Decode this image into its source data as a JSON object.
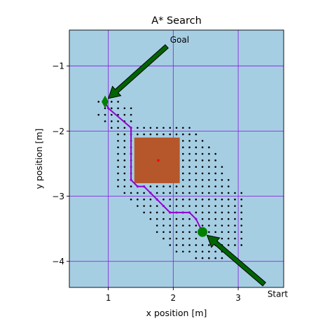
{
  "chart_data": {
    "type": "scatter",
    "title": "A* Search",
    "xlabel": "x position [m]",
    "ylabel": "y position [m]",
    "xlim": [
      0.4,
      3.7
    ],
    "ylim": [
      -4.4,
      -0.45
    ],
    "xticks": [
      1,
      2,
      3
    ],
    "xtick_labels": [
      "1",
      "2",
      "3"
    ],
    "yticks": [
      -1,
      -2,
      -3,
      -4
    ],
    "ytick_labels": [
      "−1",
      "−2",
      "−3",
      "−4"
    ],
    "grid": true,
    "background_color": "#a6cee3",
    "grid_color": "#8a2be2",
    "obstacle": {
      "x": [
        1.4,
        2.1
      ],
      "y": [
        -2.8,
        -2.1
      ],
      "center": [
        1.77,
        -2.45
      ],
      "color": "#b5572b",
      "center_color": "#ff0000"
    },
    "path": {
      "color": "#9400d3",
      "x": [
        0.95,
        1.0,
        1.35,
        1.35,
        1.35,
        1.45,
        1.55,
        1.65,
        1.75,
        1.85,
        1.95,
        2.05,
        2.15,
        2.25,
        2.35,
        2.45
      ],
      "y": [
        -1.55,
        -1.65,
        -1.95,
        -2.35,
        -2.75,
        -2.85,
        -2.85,
        -2.95,
        -3.05,
        -3.15,
        -3.25,
        -3.25,
        -3.25,
        -3.25,
        -3.35,
        -3.55
      ]
    },
    "explored_nodes": {
      "color": "#000000",
      "rows": [
        {
          "y": -1.55,
          "x": [
            0.85,
            1.05,
            1.15
          ]
        },
        {
          "y": -1.65,
          "x": [
            0.95,
            1.05,
            1.15,
            1.25,
            1.35
          ]
        },
        {
          "y": -1.75,
          "x": [
            0.85,
            0.95,
            1.05,
            1.15,
            1.25,
            1.35
          ]
        },
        {
          "y": -1.85,
          "x": [
            0.95,
            1.05,
            1.15,
            1.25,
            1.35
          ]
        },
        {
          "y": -1.95,
          "x": [
            1.05,
            1.15,
            1.25,
            1.35,
            1.45,
            1.55,
            1.65,
            1.75,
            1.85,
            1.95,
            2.05,
            2.15,
            2.25
          ]
        },
        {
          "y": -2.05,
          "x": [
            1.15,
            1.25,
            1.35,
            1.45,
            1.55,
            1.65,
            1.75,
            1.85,
            1.95,
            2.05,
            2.15,
            2.25,
            2.35
          ]
        },
        {
          "y": -2.15,
          "x": [
            1.15,
            1.25,
            1.35,
            2.15,
            2.25,
            2.35,
            2.45
          ]
        },
        {
          "y": -2.25,
          "x": [
            1.15,
            1.25,
            1.35,
            2.15,
            2.25,
            2.35,
            2.45,
            2.55
          ]
        },
        {
          "y": -2.35,
          "x": [
            1.15,
            1.25,
            1.35,
            2.15,
            2.25,
            2.35,
            2.45,
            2.55,
            2.65
          ]
        },
        {
          "y": -2.45,
          "x": [
            1.15,
            1.25,
            1.35,
            2.15,
            2.25,
            2.35,
            2.45,
            2.55,
            2.65
          ]
        },
        {
          "y": -2.55,
          "x": [
            1.15,
            1.25,
            1.35,
            2.15,
            2.25,
            2.35,
            2.45,
            2.55,
            2.65,
            2.75
          ]
        },
        {
          "y": -2.65,
          "x": [
            1.15,
            1.25,
            1.35,
            2.15,
            2.25,
            2.35,
            2.45,
            2.55,
            2.65,
            2.75
          ]
        },
        {
          "y": -2.75,
          "x": [
            1.15,
            1.25,
            1.35,
            2.15,
            2.25,
            2.35,
            2.45,
            2.55,
            2.65,
            2.75,
            2.85
          ]
        },
        {
          "y": -2.85,
          "x": [
            1.15,
            1.25,
            1.35,
            1.45,
            1.55,
            1.65,
            1.75,
            1.85,
            1.95,
            2.05,
            2.15,
            2.25,
            2.35,
            2.45,
            2.55,
            2.65,
            2.75,
            2.85
          ]
        },
        {
          "y": -2.95,
          "x": [
            1.25,
            1.35,
            1.45,
            1.55,
            1.65,
            1.75,
            1.85,
            1.95,
            2.05,
            2.15,
            2.25,
            2.35,
            2.45,
            2.55,
            2.65,
            2.75,
            2.85,
            2.95,
            3.05
          ]
        },
        {
          "y": -3.05,
          "x": [
            1.35,
            1.45,
            1.55,
            1.65,
            1.75,
            1.85,
            1.95,
            2.05,
            2.15,
            2.25,
            2.35,
            2.45,
            2.55,
            2.65,
            2.75,
            2.85,
            2.95,
            3.05
          ]
        },
        {
          "y": -3.15,
          "x": [
            1.45,
            1.55,
            1.65,
            1.75,
            1.85,
            1.95,
            2.05,
            2.15,
            2.25,
            2.35,
            2.45,
            2.55,
            2.65,
            2.75,
            2.85,
            2.95,
            3.05
          ]
        },
        {
          "y": -3.25,
          "x": [
            1.55,
            1.65,
            1.75,
            1.85,
            1.95,
            2.05,
            2.15,
            2.25,
            2.35,
            2.45,
            2.55,
            2.65,
            2.75,
            2.85,
            2.95,
            3.05
          ]
        },
        {
          "y": -3.35,
          "x": [
            1.65,
            1.75,
            1.85,
            1.95,
            2.05,
            2.15,
            2.25,
            2.35,
            2.45,
            2.55,
            2.65,
            2.75,
            2.85,
            2.95,
            3.05
          ]
        },
        {
          "y": -3.45,
          "x": [
            1.75,
            1.85,
            1.95,
            2.05,
            2.15,
            2.25,
            2.35,
            2.45,
            2.55,
            2.65,
            2.75,
            2.85,
            2.95,
            3.05
          ]
        },
        {
          "y": -3.55,
          "x": [
            1.75,
            1.85,
            1.95,
            2.05,
            2.15,
            2.25,
            2.35,
            2.55,
            2.65,
            2.75,
            2.85,
            2.95,
            3.05
          ]
        },
        {
          "y": -3.65,
          "x": [
            1.85,
            1.95,
            2.05,
            2.15,
            2.25,
            2.35,
            2.55,
            2.65,
            2.75,
            2.85,
            2.95,
            3.05
          ]
        },
        {
          "y": -3.75,
          "x": [
            1.95,
            2.05,
            2.15,
            2.25,
            2.35,
            2.45,
            2.55,
            2.65,
            2.75,
            2.85,
            2.95,
            3.05
          ]
        },
        {
          "y": -3.85,
          "x": [
            2.05,
            2.15,
            2.25,
            2.35,
            2.45,
            2.55,
            2.65,
            2.75
          ]
        },
        {
          "y": -3.95,
          "x": [
            2.35,
            2.45,
            2.55,
            2.65,
            2.75
          ]
        }
      ]
    },
    "start": {
      "x": 2.45,
      "y": -3.55,
      "marker": "circle",
      "color": "#008000"
    },
    "goal": {
      "x": 0.95,
      "y": -1.55,
      "marker": "diamond",
      "color": "#008000"
    },
    "annotations": [
      {
        "label": "Start",
        "arrow_from": [
          3.4,
          -4.35
        ],
        "arrow_to": [
          2.52,
          -3.6
        ],
        "color": "#006400",
        "text_at": [
          3.45,
          -4.5
        ]
      },
      {
        "label": "Goal",
        "arrow_from": [
          1.9,
          -0.7
        ],
        "arrow_to": [
          1.0,
          -1.5
        ],
        "color": "#006400",
        "text_at": [
          1.95,
          -0.6
        ]
      }
    ]
  }
}
